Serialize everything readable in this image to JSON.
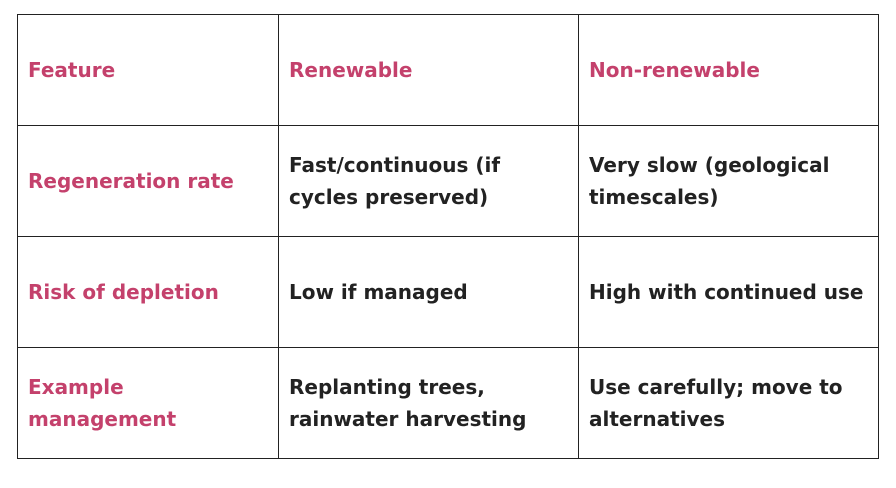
{
  "table": {
    "header": [
      [
        "Feature"
      ],
      [
        "Renewable"
      ],
      [
        "Non-renewable"
      ]
    ],
    "rows": [
      [
        [
          "Regeneration rate"
        ],
        [
          "Fast/continuous (if",
          "cycles preserved)"
        ],
        [
          "Very slow (geological",
          "timescales)"
        ]
      ],
      [
        [
          "Risk of depletion"
        ],
        [
          "Low if managed"
        ],
        [
          "High with continued use"
        ]
      ],
      [
        [
          "Example",
          "management"
        ],
        [
          "Replanting trees,",
          "rainwater harvesting"
        ],
        [
          "Use carefully; move to",
          "alternatives"
        ]
      ]
    ]
  }
}
